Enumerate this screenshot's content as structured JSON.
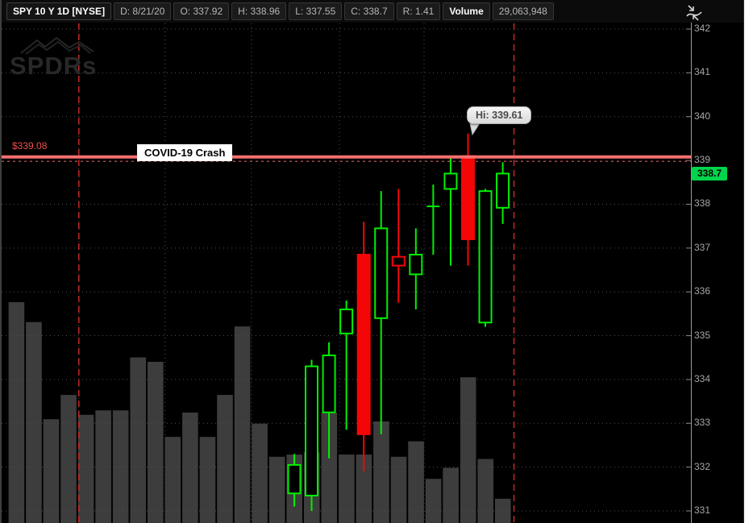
{
  "header": {
    "title": "SPY 10 Y 1D [NYSE]",
    "fields": [
      {
        "key": "date",
        "text": "D: 8/21/20"
      },
      {
        "key": "open",
        "text": "O: 337.92"
      },
      {
        "key": "high",
        "text": "H: 338.96"
      },
      {
        "key": "low",
        "text": "L: 337.55"
      },
      {
        "key": "close",
        "text": "C: 338.7"
      },
      {
        "key": "range",
        "text": "R: 1.41"
      }
    ],
    "volume_label": "Volume",
    "volume_value": "29,063,948"
  },
  "watermark": "SPDRs",
  "annotations": {
    "price_line_label": "$339.08",
    "crash_box_label": "COVID-19 Crash",
    "hi_tooltip": "Hi: 339.61",
    "last_price_badge": "338.7"
  },
  "colors": {
    "up": "#00f000",
    "down": "#f40606",
    "volume": "#3d3d3d",
    "alert": "#f56f6f",
    "alert_dotted": "#a04848",
    "dashed_marker": "#c62828",
    "grid": "#4f4f4f",
    "axis_border": "#9a9a9a",
    "badge": "#00d44c",
    "axis_text": "#a6a6a6"
  },
  "chart_data": {
    "type": "candlestick",
    "symbol": "SPY",
    "range": "10 Y",
    "interval": "1D",
    "exchange": "NYSE",
    "y_axis": {
      "min": 331,
      "max": 342,
      "tick_step": 1,
      "tick_labels": [
        "342",
        "341",
        "340",
        "339",
        "338",
        "337",
        "336",
        "335",
        "334",
        "333",
        "332",
        "331"
      ]
    },
    "alert_line": {
      "price": 339.08,
      "price_label": "$339.08",
      "label": "COVID-19 Crash",
      "style": "solid + dotted"
    },
    "high_marker": {
      "price": 339.61,
      "label": "Hi: 339.61",
      "candle_slot": 26
    },
    "last_price": 338.7,
    "last_bar": {
      "date": "8/21/20",
      "open": 337.92,
      "high": 338.96,
      "low": 337.55,
      "close": 338.7,
      "range": 1.41,
      "volume": "29,063,948"
    },
    "candles": [
      {
        "slot": 16,
        "o": 331.4,
        "h": 332.3,
        "l": 331.1,
        "c": 332.05,
        "t": "up"
      },
      {
        "slot": 17,
        "o": 331.35,
        "h": 334.45,
        "l": 331.0,
        "c": 334.3,
        "t": "up"
      },
      {
        "slot": 18,
        "o": 333.25,
        "h": 334.85,
        "l": 332.2,
        "c": 334.55,
        "t": "up"
      },
      {
        "slot": 19,
        "o": 335.05,
        "h": 335.8,
        "l": 332.85,
        "c": 335.6,
        "t": "up"
      },
      {
        "slot": 20,
        "o": 336.85,
        "h": 337.6,
        "l": 331.9,
        "c": 332.75,
        "t": "down"
      },
      {
        "slot": 21,
        "o": 335.4,
        "h": 338.3,
        "l": 332.75,
        "c": 337.45,
        "t": "up"
      },
      {
        "slot": 22,
        "o": 336.8,
        "h": 338.35,
        "l": 335.75,
        "c": 336.6,
        "t": "down-hollow"
      },
      {
        "slot": 23,
        "o": 336.4,
        "h": 337.45,
        "l": 335.6,
        "c": 336.85,
        "t": "up"
      },
      {
        "slot": 24,
        "o": 337.95,
        "h": 338.45,
        "l": 336.85,
        "c": 337.9,
        "t": "doji"
      },
      {
        "slot": 25,
        "o": 338.35,
        "h": 339.08,
        "l": 336.6,
        "c": 338.7,
        "t": "up"
      },
      {
        "slot": 26,
        "o": 339.1,
        "h": 339.61,
        "l": 336.6,
        "c": 337.2,
        "t": "down"
      },
      {
        "slot": 27,
        "o": 335.3,
        "h": 338.35,
        "l": 335.2,
        "c": 338.3,
        "t": "up"
      },
      {
        "slot": 28,
        "o": 337.92,
        "h": 338.96,
        "l": 337.55,
        "c": 338.7,
        "t": "up"
      }
    ],
    "volume_rel": [
      100,
      91,
      47,
      58,
      49,
      51,
      51,
      75,
      73,
      39,
      50,
      39,
      58,
      89,
      45,
      30,
      31,
      32,
      50,
      31,
      31,
      46,
      30,
      37,
      20,
      25,
      66,
      29,
      11
    ],
    "grid": {
      "horizontal": "every 1.00 price unit",
      "vertical": "weekly (every 5 bars)",
      "style": "dotted"
    }
  }
}
